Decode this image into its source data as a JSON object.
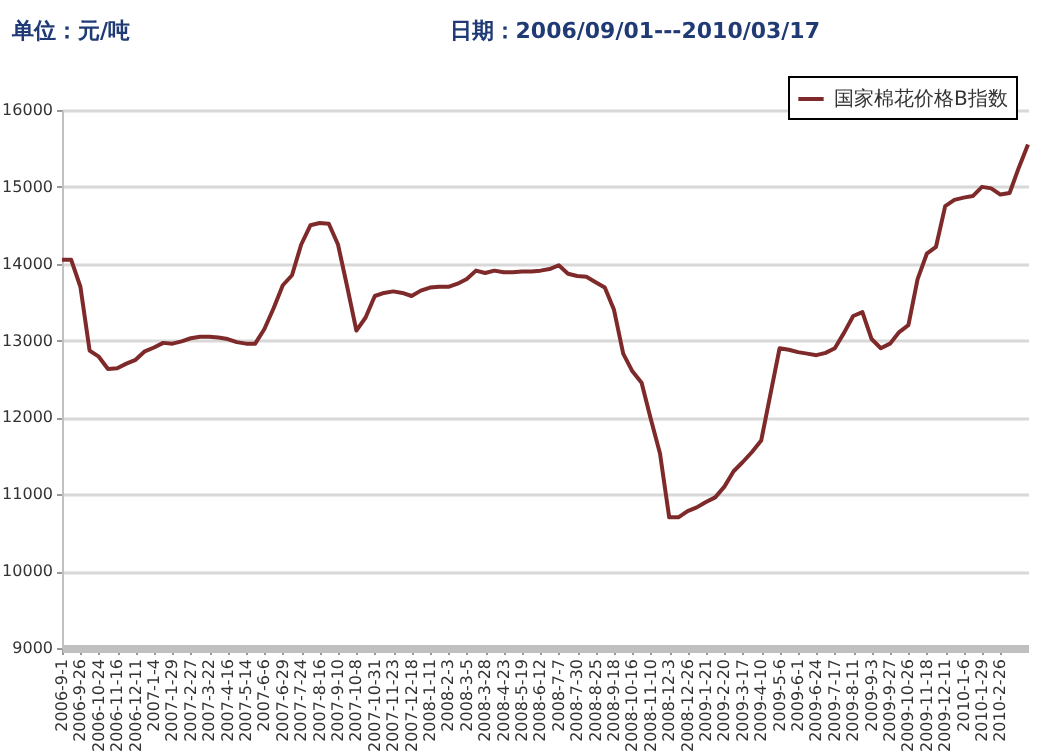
{
  "chart_data": {
    "type": "line",
    "annotations": [
      "单位：元/吨",
      "日期：2006/09/01---2010/03/17"
    ],
    "categories": [
      "2006-9-1",
      null,
      "2006-9-26",
      null,
      "2006-10-24",
      null,
      "2006-11-16",
      null,
      "2006-12-11",
      null,
      "2007-1-4",
      null,
      "2007-1-29",
      null,
      "2007-2-27",
      null,
      "2007-3-22",
      null,
      "2007-4-16",
      null,
      "2007-5-14",
      null,
      "2007-6-6",
      null,
      "2007-6-29",
      null,
      "2007-7-24",
      null,
      "2007-8-16",
      null,
      "2007-9-10",
      null,
      "2007-10-8",
      null,
      "2007-10-31",
      null,
      "2007-11-23",
      null,
      "2007-12-18",
      null,
      "2008-1-11",
      null,
      "2008-2-3",
      null,
      "2008-3-5",
      null,
      "2008-3-28",
      null,
      "2008-4-23",
      null,
      "2008-5-19",
      null,
      "2008-6-12",
      null,
      "2008-7-7",
      null,
      "2008-7-30",
      null,
      "2008-8-25",
      null,
      "2008-9-18",
      null,
      "2008-10-16",
      null,
      "2008-11-10",
      null,
      "2008-12-3",
      null,
      "2008-12-26",
      null,
      "2009-1-21",
      null,
      "2009-2-20",
      null,
      "2009-3-17",
      null,
      "2009-4-10",
      null,
      "2009-5-6",
      null,
      "2009-6-1",
      null,
      "2009-6-24",
      null,
      "2009-7-17",
      null,
      "2009-8-11",
      null,
      "2009-9-3",
      null,
      "2009-9-27",
      null,
      "2009-10-26",
      null,
      "2009-11-18",
      null,
      "2009-12-11",
      null,
      "2010-1-6",
      null,
      "2010-1-29",
      null,
      "2010-2-26",
      null,
      null,
      null
    ],
    "series": [
      {
        "name": "国家棉花价格B指数",
        "color": "#7f2a2a",
        "values": [
          14050,
          14050,
          13700,
          12870,
          12790,
          12630,
          12640,
          12700,
          12750,
          12860,
          12910,
          12970,
          12960,
          12990,
          13030,
          13050,
          13050,
          13040,
          13020,
          12980,
          12960,
          12960,
          13150,
          13420,
          13720,
          13850,
          14250,
          14500,
          14530,
          14520,
          14250,
          13700,
          13130,
          13300,
          13580,
          13620,
          13640,
          13620,
          13580,
          13650,
          13690,
          13700,
          13700,
          13740,
          13800,
          13910,
          13880,
          13910,
          13890,
          13890,
          13900,
          13900,
          13910,
          13930,
          13980,
          13870,
          13840,
          13830,
          13760,
          13690,
          13400,
          12830,
          12600,
          12450,
          11980,
          11530,
          10700,
          10700,
          10780,
          10830,
          10900,
          10960,
          11100,
          11300,
          11420,
          11550,
          11700,
          12300,
          12900,
          12880,
          12850,
          12830,
          12810,
          12840,
          12900,
          13100,
          13320,
          13370,
          13020,
          12900,
          12960,
          13110,
          13200,
          13800,
          14130,
          14220,
          14750,
          14830,
          14860,
          14880,
          15000,
          14980,
          14900,
          14920,
          15250,
          15550
        ]
      }
    ],
    "ylim": [
      9000,
      16000
    ],
    "yticks": [
      9000,
      10000,
      11000,
      12000,
      13000,
      14000,
      15000,
      16000
    ],
    "grid": "y",
    "legend": "top right",
    "line_style": "solid",
    "marker": "none"
  }
}
